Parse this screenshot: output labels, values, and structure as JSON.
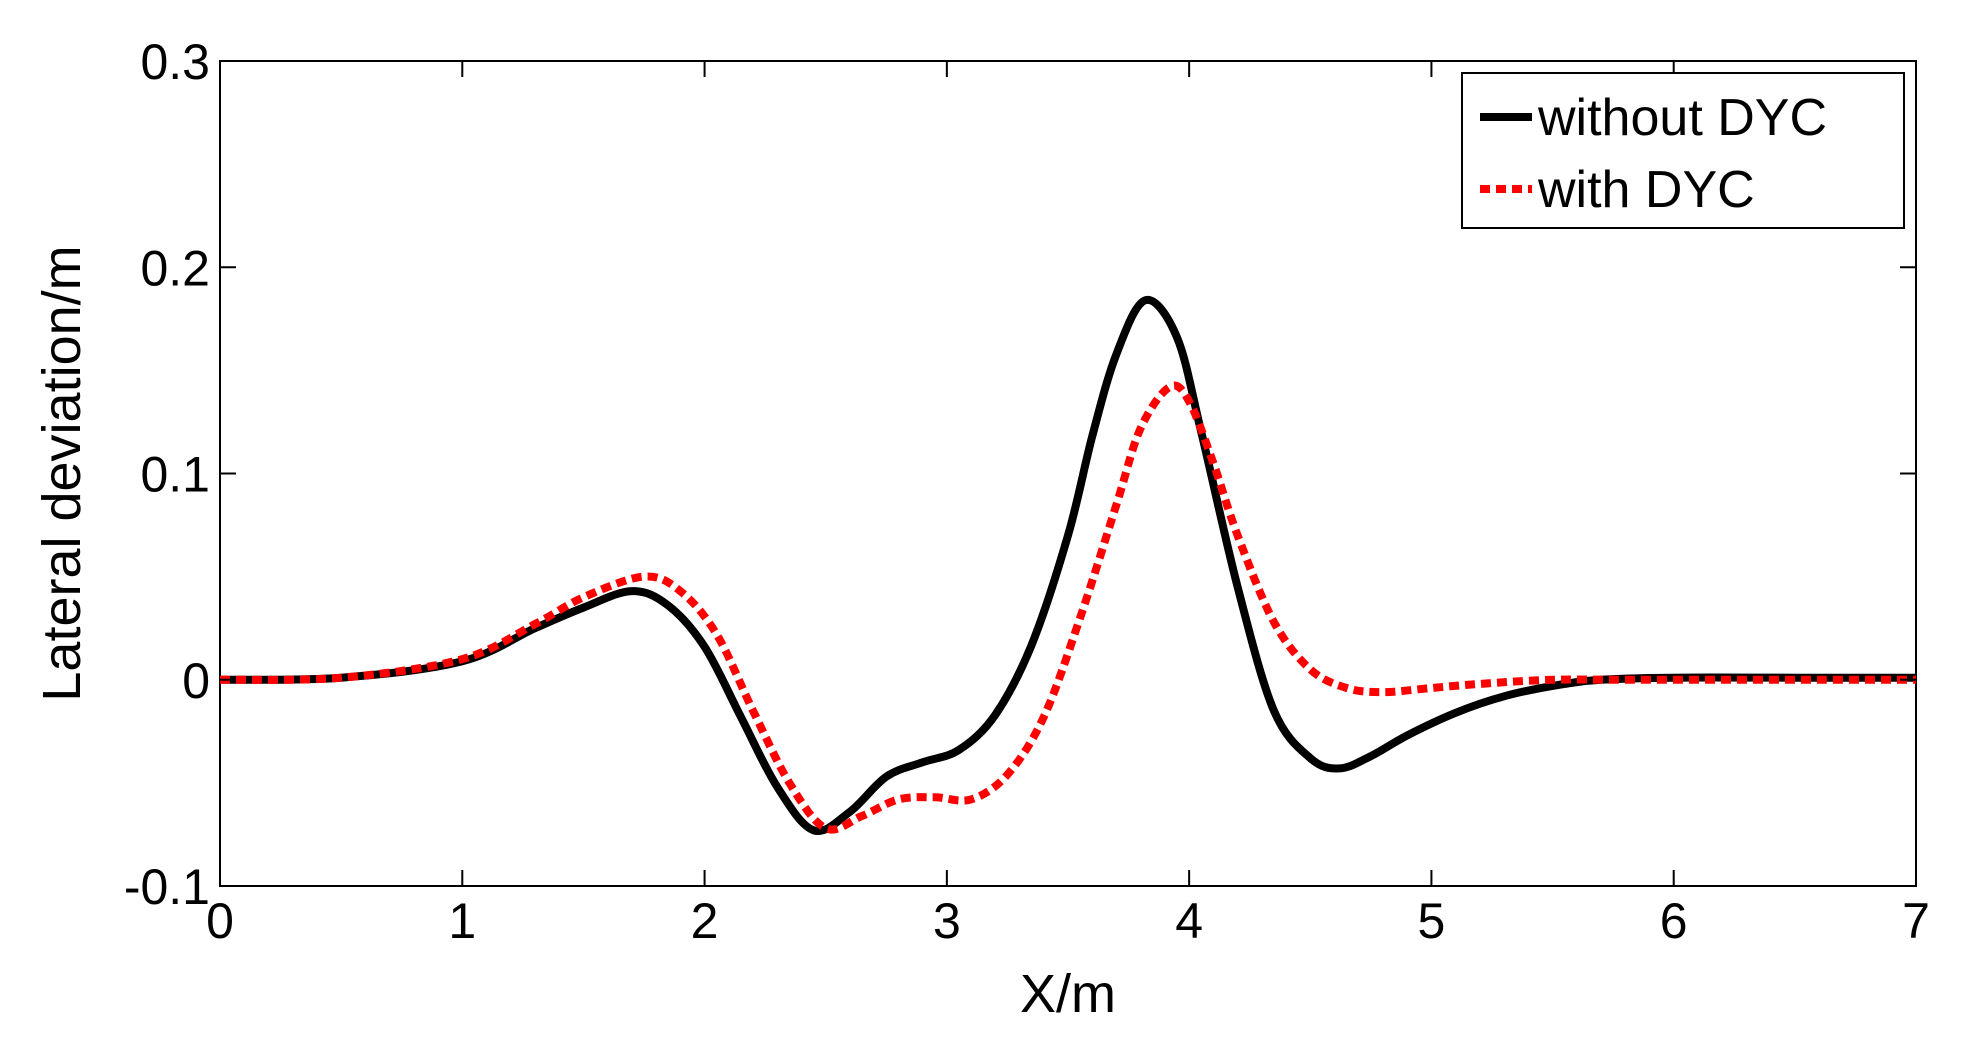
{
  "chart_data": {
    "type": "line",
    "title": "",
    "xlabel": "X/m",
    "ylabel": "Lateral deviation/m",
    "xlim": [
      0,
      7
    ],
    "ylim": [
      -0.1,
      0.3
    ],
    "xticks": [
      0,
      1,
      2,
      3,
      4,
      5,
      6,
      7
    ],
    "xtick_labels": [
      "0",
      "1",
      "2",
      "3",
      "4",
      "5",
      "6",
      "7"
    ],
    "yticks": [
      -0.1,
      0,
      0.1,
      0.2,
      0.3
    ],
    "ytick_labels": [
      "-0.1",
      "0",
      "0.1",
      "0.2",
      "0.3"
    ],
    "grid": false,
    "legend_position": "top-right",
    "series": [
      {
        "name": "without DYC",
        "color": "#000000",
        "style": "solid",
        "x": [
          0,
          0.5,
          1.0,
          1.3,
          1.5,
          1.7,
          1.85,
          2.0,
          2.15,
          2.3,
          2.45,
          2.6,
          2.75,
          2.9,
          3.05,
          3.2,
          3.35,
          3.5,
          3.6,
          3.7,
          3.82,
          3.95,
          4.05,
          4.2,
          4.35,
          4.5,
          4.62,
          4.75,
          4.9,
          5.1,
          5.3,
          5.5,
          5.7,
          6.0,
          6.5,
          7.0
        ],
        "y": [
          0,
          0.001,
          0.009,
          0.025,
          0.035,
          0.043,
          0.036,
          0.016,
          -0.018,
          -0.052,
          -0.073,
          -0.064,
          -0.047,
          -0.04,
          -0.034,
          -0.017,
          0.017,
          0.07,
          0.118,
          0.158,
          0.184,
          0.166,
          0.12,
          0.045,
          -0.015,
          -0.038,
          -0.043,
          -0.037,
          -0.027,
          -0.016,
          -0.008,
          -0.003,
          0,
          0.001,
          0.001,
          0.001
        ]
      },
      {
        "name": "with DYC",
        "color": "#ff0000",
        "style": "dotted",
        "x": [
          0,
          0.5,
          1.0,
          1.3,
          1.5,
          1.75,
          1.9,
          2.05,
          2.2,
          2.35,
          2.5,
          2.65,
          2.8,
          2.95,
          3.1,
          3.25,
          3.4,
          3.55,
          3.7,
          3.8,
          3.92,
          4.0,
          4.1,
          4.2,
          4.35,
          4.5,
          4.65,
          4.8,
          5.0,
          5.2,
          5.5,
          5.8,
          6.2,
          6.6,
          7.0
        ],
        "y": [
          0,
          0.001,
          0.01,
          0.027,
          0.04,
          0.05,
          0.043,
          0.022,
          -0.015,
          -0.05,
          -0.072,
          -0.066,
          -0.058,
          -0.057,
          -0.058,
          -0.046,
          -0.018,
          0.03,
          0.085,
          0.122,
          0.142,
          0.135,
          0.105,
          0.07,
          0.028,
          0.005,
          -0.004,
          -0.006,
          -0.004,
          -0.002,
          0,
          0,
          0,
          0,
          0
        ]
      }
    ]
  }
}
